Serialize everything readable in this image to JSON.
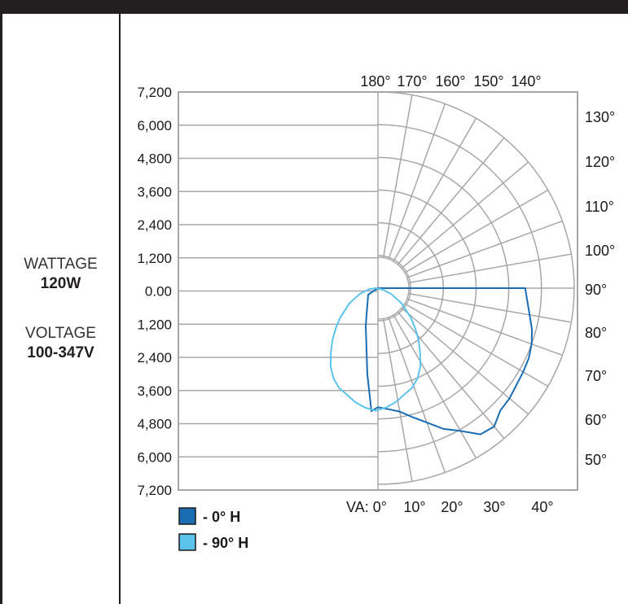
{
  "specs": {
    "wattage_label": "WATTAGE",
    "wattage_value": "120W",
    "voltage_label": "VOLTAGE",
    "voltage_value": "100-347V"
  },
  "chart_data": {
    "type": "polar",
    "title": "",
    "radial_axis": {
      "ticks": [
        "7,200",
        "6,000",
        "4,800",
        "3,600",
        "2,400",
        "1,200",
        "0.00",
        "1,200",
        "2,400",
        "3,600",
        "4,800",
        "6,000",
        "7,200"
      ],
      "max": 7200,
      "step": 1200
    },
    "angle_labels_top": [
      "180°",
      "170°",
      "160°",
      "150°",
      "140°"
    ],
    "angle_labels_right": [
      "130°",
      "120°",
      "110°",
      "100°",
      "90°",
      "80°",
      "70°",
      "60°",
      "50°"
    ],
    "bottom_labels": [
      "VA: 0°",
      "10°",
      "20°",
      "30°",
      "40°"
    ],
    "colors": {
      "grid": "#a7a7a7",
      "series_0": "#1b6db3",
      "series_90": "#5bc3ec"
    },
    "series": [
      {
        "name": "- 0° H",
        "points": [
          [
            0,
            4370
          ],
          [
            5,
            4460
          ],
          [
            10,
            4600
          ],
          [
            15,
            4900
          ],
          [
            20,
            5250
          ],
          [
            25,
            5700
          ],
          [
            30,
            6050
          ],
          [
            35,
            6550
          ],
          [
            40,
            6630
          ],
          [
            45,
            6350
          ],
          [
            50,
            6300
          ],
          [
            55,
            6200
          ],
          [
            60,
            6150
          ],
          [
            65,
            6100
          ],
          [
            70,
            6000
          ],
          [
            75,
            5850
          ],
          [
            80,
            5650
          ],
          [
            85,
            5500
          ],
          [
            90,
            5400
          ]
        ]
      },
      {
        "name": "- 90° H",
        "points": [
          [
            0,
            4500
          ],
          [
            5,
            4400
          ],
          [
            10,
            4250
          ],
          [
            15,
            4050
          ],
          [
            20,
            3900
          ],
          [
            25,
            3650
          ],
          [
            30,
            3300
          ],
          [
            35,
            2850
          ],
          [
            40,
            2450
          ],
          [
            45,
            2050
          ],
          [
            50,
            1700
          ],
          [
            60,
            1100
          ],
          [
            70,
            600
          ],
          [
            80,
            250
          ],
          [
            90,
            0
          ]
        ],
        "mirror": true
      }
    ]
  }
}
